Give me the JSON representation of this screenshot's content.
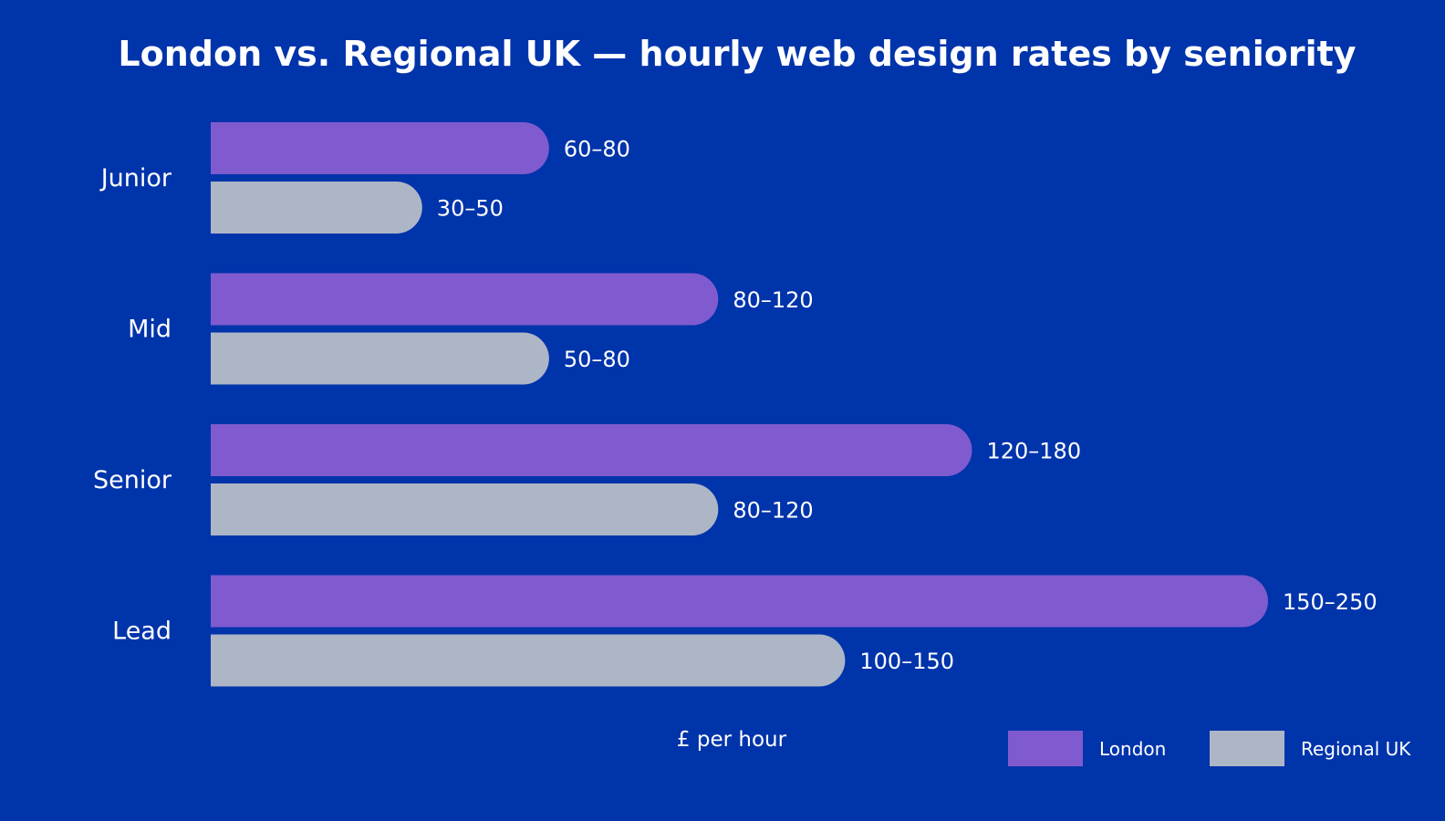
{
  "chart_data": {
    "type": "bar",
    "orientation": "horizontal",
    "title": "London vs. Regional UK — hourly web design rates by seniority",
    "xlabel": "£ per hour",
    "ylabel": "",
    "categories": [
      "Junior",
      "Mid",
      "Senior",
      "Lead"
    ],
    "series": [
      {
        "name": "London",
        "color": "#7f5bcf",
        "ranges": [
          [
            60,
            80
          ],
          [
            80,
            120
          ],
          [
            120,
            180
          ],
          [
            150,
            250
          ]
        ],
        "labels": [
          "60–80",
          "80–120",
          "120–180",
          "150–250"
        ]
      },
      {
        "name": "Regional UK",
        "color": "#adb6c6",
        "ranges": [
          [
            30,
            50
          ],
          [
            50,
            80
          ],
          [
            80,
            120
          ],
          [
            100,
            150
          ]
        ],
        "labels": [
          "30–50",
          "50–80",
          "80–120",
          "100–150"
        ]
      }
    ],
    "xlim": [
      0,
      250
    ],
    "grid": false,
    "legend_position": "bottom-right",
    "background_color": "#0034ab"
  }
}
